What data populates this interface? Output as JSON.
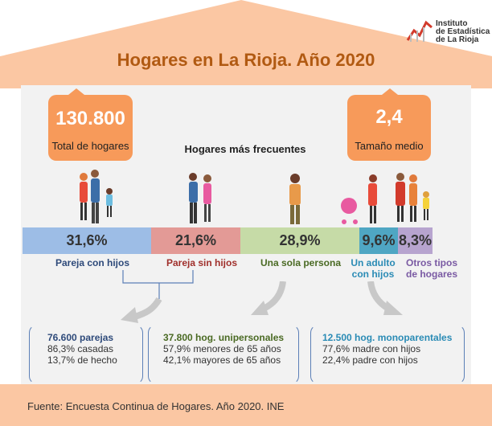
{
  "title": "Hogares en La Rioja. Año 2020",
  "logo": {
    "line1": "Instituto",
    "line2": "de Estadística",
    "line3": "de La Rioja"
  },
  "total": {
    "value": "130.800",
    "label": "Total de hogares"
  },
  "size": {
    "value": "2,4",
    "label": "Tamaño medio"
  },
  "subtitle": "Hogares más frecuentes",
  "segments": [
    {
      "pct": "31,6%",
      "label": "Pareja con hijos",
      "color": "#9dbde6",
      "text_color": "#2e4a7a"
    },
    {
      "pct": "21,6%",
      "label": "Pareja sin hijos",
      "color": "#e39a96",
      "text_color": "#a0302c"
    },
    {
      "pct": "28,9%",
      "label": "Una sola persona",
      "color": "#c6dba7",
      "text_color": "#4a6a23"
    },
    {
      "pct": "9,6%",
      "label1": "Un adulto",
      "label2": "con hijos",
      "color": "#4fa6c3",
      "text_color": "#2a8bb5"
    },
    {
      "pct": "8,3%",
      "label1": "Otros tipos",
      "label2": "de hogares",
      "color": "#b7a4cf",
      "text_color": "#7a5aa3"
    }
  ],
  "cards": [
    {
      "l1": "76.600 parejas",
      "l2": "86,3% casadas",
      "l3": "13,7% de hecho",
      "color": "#2e4a7a"
    },
    {
      "l1": "37.800 hog. unipersonales",
      "l2": "57,9% menores de 65 años",
      "l3": "42,1% mayores de 65 años",
      "color": "#4a6a23"
    },
    {
      "l1": "12.500 hog. monoparentales",
      "l2": "77,6% madre con hijos",
      "l3": "22,4% padre con hijos",
      "color": "#2a8bb5"
    }
  ],
  "footer": "Fuente: Encuesta Continua de Hogares. Año 2020. INE"
}
